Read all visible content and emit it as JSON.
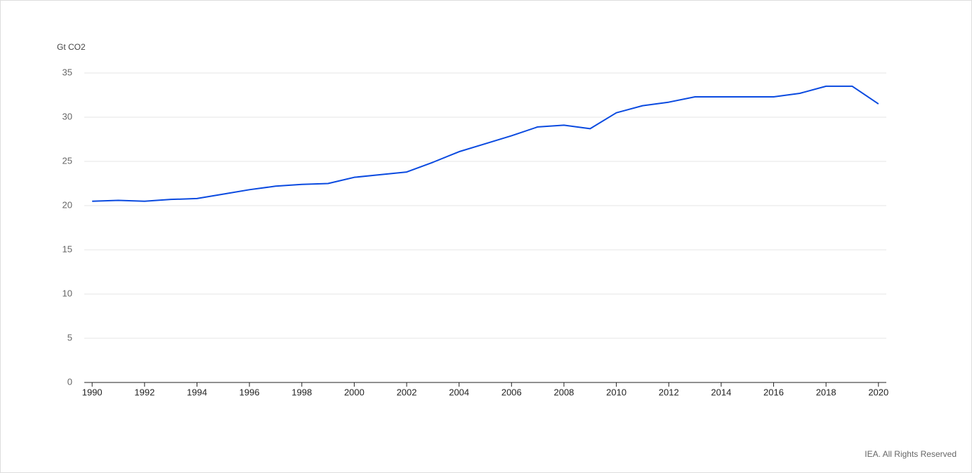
{
  "chart_data": {
    "type": "line",
    "y_label": "Gt CO2",
    "credit": "IEA. All Rights Reserved",
    "x": [
      1990,
      1991,
      1992,
      1993,
      1994,
      1995,
      1996,
      1997,
      1998,
      1999,
      2000,
      2001,
      2002,
      2003,
      2004,
      2005,
      2006,
      2007,
      2008,
      2009,
      2010,
      2011,
      2012,
      2013,
      2014,
      2015,
      2016,
      2017,
      2018,
      2019,
      2020
    ],
    "series": [
      {
        "color": "#0a4ae0",
        "values": [
          20.5,
          20.6,
          20.5,
          20.7,
          20.8,
          21.3,
          21.8,
          22.2,
          22.4,
          22.5,
          23.2,
          23.5,
          23.8,
          24.9,
          26.1,
          27.0,
          27.9,
          28.9,
          29.1,
          28.7,
          30.5,
          31.3,
          31.7,
          32.3,
          32.3,
          32.3,
          32.3,
          32.7,
          33.5,
          33.5,
          31.5
        ]
      }
    ],
    "xlim": [
      1989.7,
      2020.3
    ],
    "xticks": [
      1990,
      1992,
      1994,
      1996,
      1998,
      2000,
      2002,
      2004,
      2006,
      2008,
      2010,
      2012,
      2014,
      2016,
      2018,
      2020
    ],
    "ylim": [
      0,
      35
    ],
    "yticks": [
      0,
      5,
      10,
      15,
      20,
      25,
      30,
      35
    ],
    "grid": true
  }
}
